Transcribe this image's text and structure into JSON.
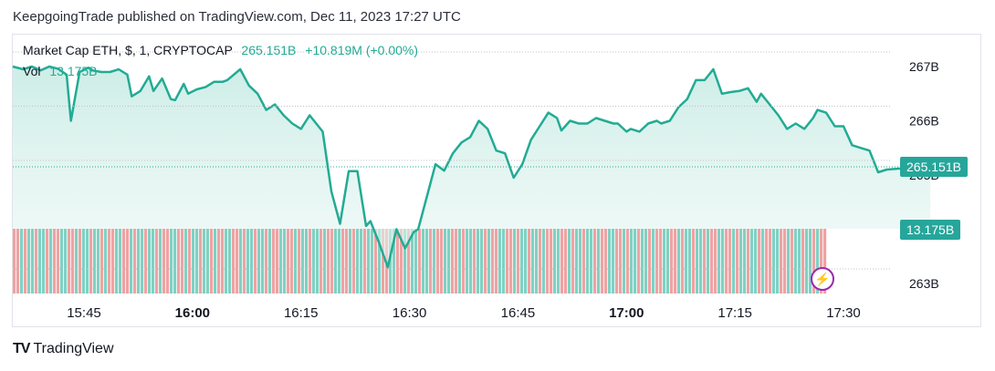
{
  "header": {
    "published": "KeepgoingTrade published on TradingView.com, Dec 11, 2023 17:27 UTC"
  },
  "legend": {
    "symbol": "Market Cap ETH, $, 1, CRYPTOCAP",
    "last": "265.151B",
    "change": "+10.819M (+0.00%)",
    "vol_label": "Vol",
    "vol_value": "13.175B"
  },
  "badges": {
    "price": "265.151B",
    "volume": "13.175B"
  },
  "footer": {
    "brand": "TradingView",
    "logo": "TV"
  },
  "colors": {
    "line": "#22ab94",
    "area_top": "#c8ebe4",
    "vol_up": "#7fd1c3",
    "vol_down": "#eea3a3"
  },
  "chart_data": {
    "type": "line",
    "title": "Market Cap ETH, $, 1, CRYPTOCAP",
    "xlabel": "",
    "ylabel": "",
    "x_ticks": [
      {
        "label": "15:45",
        "t": 15.75,
        "bold": false
      },
      {
        "label": "16:00",
        "t": 16.0,
        "bold": true
      },
      {
        "label": "16:15",
        "t": 16.25,
        "bold": false
      },
      {
        "label": "16:30",
        "t": 16.5,
        "bold": false
      },
      {
        "label": "16:45",
        "t": 16.75,
        "bold": false
      },
      {
        "label": "17:00",
        "t": 17.0,
        "bold": true
      },
      {
        "label": "17:15",
        "t": 17.25,
        "bold": false
      },
      {
        "label": "17:30",
        "t": 17.5,
        "bold": false
      }
    ],
    "y_ticks": [
      {
        "label": "267B",
        "v": 267
      },
      {
        "label": "266B",
        "v": 266
      },
      {
        "label": "265B",
        "v": 265
      },
      {
        "label": "263B",
        "v": 263
      }
    ],
    "ylim_top": 267.2,
    "ylim_bottom": 262.75,
    "series": [
      {
        "values": [
          [
            15.58,
            267.0
          ],
          [
            15.61,
            266.95
          ],
          [
            15.63,
            267.0
          ],
          [
            15.65,
            266.93
          ],
          [
            15.67,
            267.0
          ],
          [
            15.69,
            266.96
          ],
          [
            15.71,
            266.85
          ],
          [
            15.72,
            266.0
          ],
          [
            15.74,
            266.9
          ],
          [
            15.76,
            266.98
          ],
          [
            15.77,
            266.93
          ],
          [
            15.79,
            266.9
          ],
          [
            15.81,
            266.9
          ],
          [
            15.83,
            266.95
          ],
          [
            15.85,
            266.85
          ],
          [
            15.86,
            266.45
          ],
          [
            15.88,
            266.55
          ],
          [
            15.9,
            266.82
          ],
          [
            15.91,
            266.55
          ],
          [
            15.93,
            266.78
          ],
          [
            15.95,
            266.4
          ],
          [
            15.96,
            266.38
          ],
          [
            15.98,
            266.68
          ],
          [
            15.99,
            266.5
          ],
          [
            16.01,
            266.58
          ],
          [
            16.03,
            266.62
          ],
          [
            16.05,
            266.72
          ],
          [
            16.07,
            266.72
          ],
          [
            16.08,
            266.75
          ],
          [
            16.11,
            266.95
          ],
          [
            16.13,
            266.65
          ],
          [
            16.15,
            266.5
          ],
          [
            16.17,
            266.2
          ],
          [
            16.19,
            266.3
          ],
          [
            16.21,
            266.1
          ],
          [
            16.23,
            265.95
          ],
          [
            16.25,
            265.85
          ],
          [
            16.27,
            266.1
          ],
          [
            16.3,
            265.8
          ],
          [
            16.32,
            264.7
          ],
          [
            16.34,
            264.1
          ],
          [
            16.36,
            265.07
          ],
          [
            16.38,
            265.07
          ],
          [
            16.4,
            264.06
          ],
          [
            16.41,
            264.15
          ],
          [
            16.43,
            263.75
          ],
          [
            16.45,
            263.3
          ],
          [
            16.47,
            264.0
          ],
          [
            16.49,
            263.65
          ],
          [
            16.51,
            263.95
          ],
          [
            16.52,
            264.0
          ],
          [
            16.54,
            264.6
          ],
          [
            16.56,
            265.2
          ],
          [
            16.58,
            265.08
          ],
          [
            16.6,
            265.4
          ],
          [
            16.62,
            265.6
          ],
          [
            16.64,
            265.7
          ],
          [
            16.66,
            266.0
          ],
          [
            16.68,
            265.85
          ],
          [
            16.7,
            265.45
          ],
          [
            16.72,
            265.4
          ],
          [
            16.74,
            264.95
          ],
          [
            16.76,
            265.2
          ],
          [
            16.78,
            265.65
          ],
          [
            16.8,
            265.9
          ],
          [
            16.82,
            266.15
          ],
          [
            16.84,
            266.05
          ],
          [
            16.85,
            265.82
          ],
          [
            16.87,
            266.0
          ],
          [
            16.89,
            265.95
          ],
          [
            16.91,
            265.95
          ],
          [
            16.93,
            266.05
          ],
          [
            16.95,
            266.0
          ],
          [
            16.97,
            265.95
          ],
          [
            16.98,
            265.95
          ],
          [
            17.0,
            265.8
          ],
          [
            17.01,
            265.85
          ],
          [
            17.03,
            265.8
          ],
          [
            17.05,
            265.95
          ],
          [
            17.07,
            266.0
          ],
          [
            17.08,
            265.95
          ],
          [
            17.1,
            266.0
          ],
          [
            17.12,
            266.25
          ],
          [
            17.14,
            266.4
          ],
          [
            17.16,
            266.75
          ],
          [
            17.18,
            266.75
          ],
          [
            17.2,
            266.95
          ],
          [
            17.22,
            266.5
          ],
          [
            17.24,
            266.53
          ],
          [
            17.26,
            266.55
          ],
          [
            17.28,
            266.6
          ],
          [
            17.3,
            266.35
          ],
          [
            17.31,
            266.5
          ],
          [
            17.33,
            266.3
          ],
          [
            17.35,
            266.1
          ],
          [
            17.37,
            265.85
          ],
          [
            17.39,
            265.95
          ],
          [
            17.41,
            265.85
          ],
          [
            17.43,
            266.05
          ],
          [
            17.44,
            266.2
          ],
          [
            17.46,
            266.15
          ],
          [
            17.48,
            265.9
          ],
          [
            17.5,
            265.9
          ],
          [
            17.52,
            265.55
          ],
          [
            17.54,
            265.5
          ],
          [
            17.56,
            265.45
          ],
          [
            17.58,
            265.05
          ],
          [
            17.6,
            265.1
          ],
          [
            17.63,
            265.12
          ],
          [
            17.66,
            265.15
          ],
          [
            17.69,
            265.15
          ],
          [
            17.7,
            265.151
          ]
        ]
      }
    ]
  }
}
